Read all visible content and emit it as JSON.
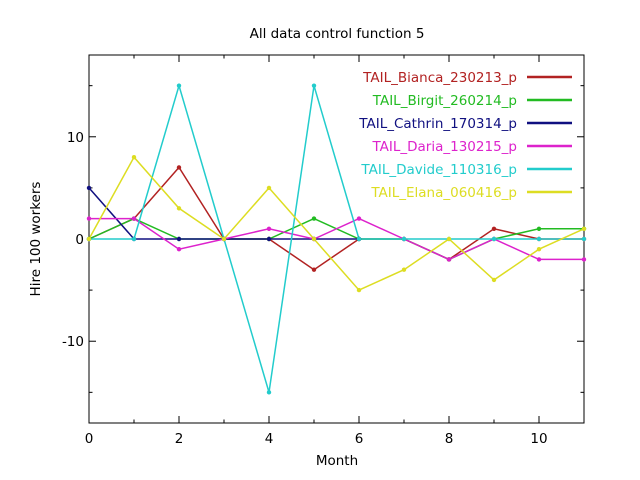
{
  "chart_data": {
    "type": "line",
    "title": "All data control function 5",
    "xlabel": "Month",
    "ylabel": "Hire 100 workers",
    "xlim": [
      0,
      11
    ],
    "ylim": [
      -18,
      18
    ],
    "xticks": [
      0,
      2,
      4,
      6,
      8,
      10
    ],
    "yticks": [
      -10,
      0,
      10
    ],
    "xtick_labels": [
      "0",
      "2",
      "4",
      "6",
      "8",
      "10"
    ],
    "ytick_labels": [
      "-10",
      "0",
      "10"
    ],
    "grid": false,
    "legend_position": "top-right",
    "series": [
      {
        "name": "TAIL_Bianca_230213_p",
        "color": "#b22222",
        "x": [
          0,
          1,
          2,
          3,
          4,
          5,
          6,
          7,
          8,
          9,
          10,
          11
        ],
        "values": [
          0,
          2,
          7,
          0,
          0,
          -3,
          0,
          0,
          -2,
          1,
          0,
          0
        ]
      },
      {
        "name": "TAIL_Birgit_260214_p",
        "color": "#22bb22",
        "x": [
          0,
          1,
          2,
          3,
          4,
          5,
          6,
          7,
          8,
          9,
          10,
          11
        ],
        "values": [
          0,
          2,
          0,
          0,
          0,
          2,
          0,
          0,
          -2,
          0,
          1,
          1
        ]
      },
      {
        "name": "TAIL_Cathrin_170314_p",
        "color": "#101080",
        "x": [
          0,
          1,
          2,
          3,
          4,
          5,
          6
        ],
        "values": [
          5,
          0,
          0,
          0,
          0,
          0,
          0
        ]
      },
      {
        "name": "TAIL_Daria_130215_p",
        "color": "#dd22cc",
        "x": [
          0,
          1,
          2,
          3,
          4,
          5,
          6,
          7,
          8,
          9,
          10,
          11
        ],
        "values": [
          2,
          2,
          -1,
          0,
          1,
          0,
          2,
          0,
          -2,
          0,
          -2,
          -2
        ]
      },
      {
        "name": "TAIL_Davide_110316_p",
        "color": "#22cccc",
        "x": [
          0,
          1,
          2,
          3,
          4,
          5,
          6,
          7,
          8,
          9,
          10,
          11
        ],
        "values": [
          0,
          0,
          15,
          0,
          -15,
          15,
          0,
          0,
          0,
          0,
          0,
          0
        ]
      },
      {
        "name": "TAIL_Elana_060416_p",
        "color": "#dddd22",
        "x": [
          0,
          1,
          2,
          3,
          4,
          5,
          6,
          7,
          8,
          9,
          10,
          11
        ],
        "values": [
          0,
          8,
          3,
          0,
          5,
          0,
          -5,
          -3,
          0,
          -4,
          -1,
          1
        ]
      }
    ]
  }
}
